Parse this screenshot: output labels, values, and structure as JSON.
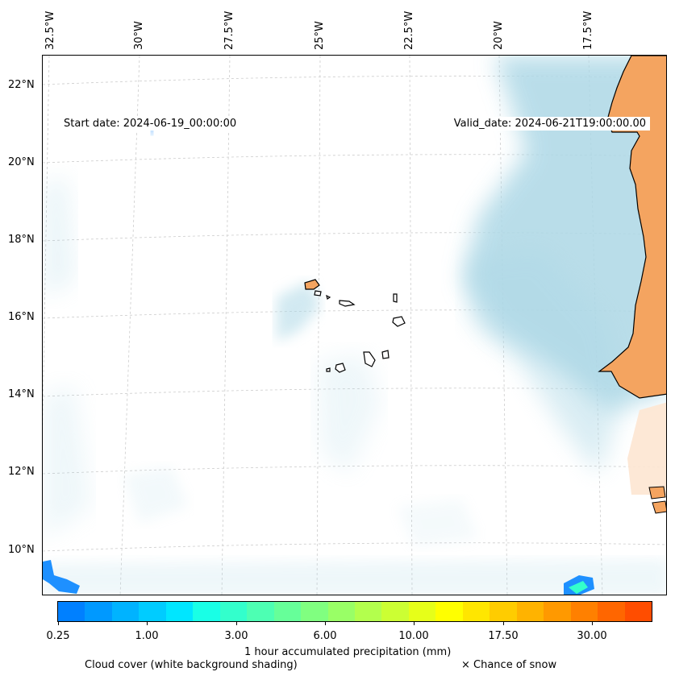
{
  "map": {
    "start_date": "Start date: 2024-06-19_00:00:00",
    "valid_date": "Valid_date: 2024-06-21T19:00:00.00",
    "longitude_labels": [
      "32.5°W",
      "30°W",
      "27.5°W",
      "25°W",
      "22.5°W",
      "20°W",
      "17.5°W"
    ],
    "latitude_labels": [
      "22°N",
      "20°N",
      "18°N",
      "16°N",
      "14°N",
      "12°N",
      "10°N"
    ],
    "land_color": "#f4a460",
    "cloud_color": "#add8e6",
    "precip_color": "#1e90ff"
  },
  "colorbar": {
    "label": "1 hour accumulated precipitation (mm)",
    "tick_labels": [
      "0.25",
      "1.00",
      "3.00",
      "6.00",
      "10.00",
      "17.50",
      "30.00"
    ],
    "colors": [
      "#0080ff",
      "#0099ff",
      "#00b3ff",
      "#00ccff",
      "#00e6ff",
      "#19ffe6",
      "#33ffcc",
      "#4dffb3",
      "#66ff99",
      "#80ff80",
      "#99ff66",
      "#b3ff4d",
      "#ccff33",
      "#e6ff19",
      "#ffff00",
      "#ffe600",
      "#ffcc00",
      "#ffb300",
      "#ff9900",
      "#ff8000",
      "#ff6600",
      "#ff4d00"
    ]
  },
  "legend": {
    "cloud_cover": "Cloud cover (white background shading)",
    "snow": "× Chance of snow"
  }
}
